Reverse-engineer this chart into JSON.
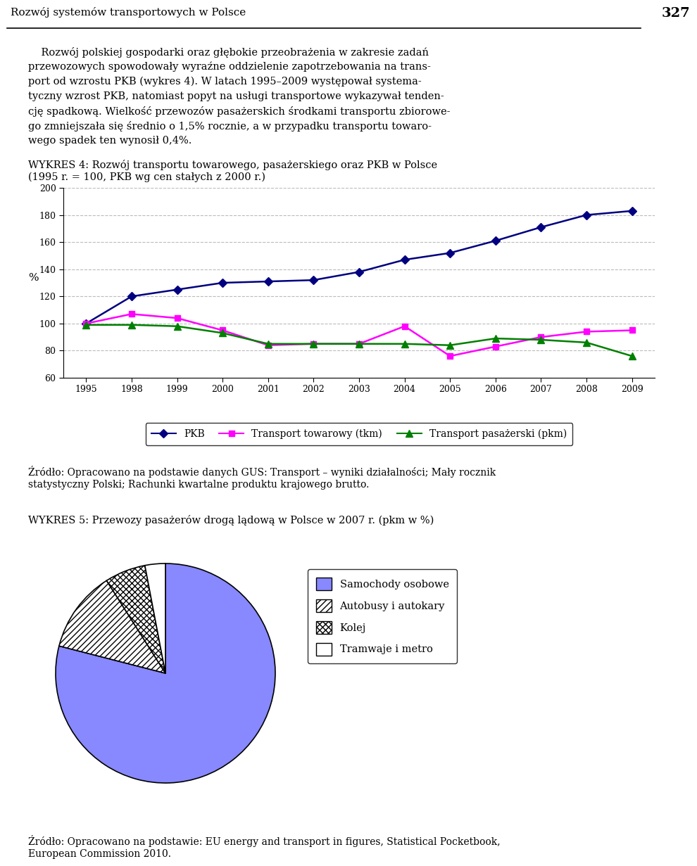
{
  "header_text": "Rozwój systemów transportowych w Polsce",
  "page_number": "327",
  "para_line1": "    Rozwój polskiej gospodarki oraz głębokie przeobrażenia w zakresie zadań",
  "para_line2": "przewozowych spowodowały wyraźne oddzielenie zapotrzebowania na trans-",
  "para_line3": "port od wzrostu PKB (wykres 4). W latach 1995–2009 występował systema-",
  "para_line4": "tyczny wzrost PKB, natomiast popyt na usługi transportowe wykazywał tenden-",
  "para_line5": "cję spadkową. Wielkość przewozów pasażerskich środkami transportu zbiorowe-",
  "para_line6": "go zmniejszała się średnio o 1,5% rocznie, a w przypadku transportu towaro-",
  "para_line7": "wego spadek ten wynosił 0,4%.",
  "chart1_title_line1": "WYKRES 4: Rozwój transportu towarowego, pasażerskiego oraz PKB w Polsce",
  "chart1_title_line2": "(1995 r. = 100, PKB wg cen stałych z 2000 r.)",
  "years": [
    1995,
    1998,
    1999,
    2000,
    2001,
    2002,
    2003,
    2004,
    2005,
    2006,
    2007,
    2008,
    2009
  ],
  "pkb": [
    100,
    120,
    125,
    130,
    131,
    132,
    138,
    147,
    152,
    161,
    171,
    180,
    183
  ],
  "transport_towarowy": [
    100,
    107,
    104,
    95,
    84,
    85,
    85,
    98,
    76,
    83,
    90,
    94,
    95
  ],
  "transport_pasazerski": [
    99,
    99,
    98,
    93,
    85,
    85,
    85,
    85,
    84,
    89,
    88,
    86,
    76
  ],
  "ylabel": "%",
  "ylim": [
    60,
    200
  ],
  "yticks": [
    60,
    80,
    100,
    120,
    140,
    160,
    180,
    200
  ],
  "pkb_color": "#000080",
  "towarowy_color": "#FF00FF",
  "pasazerski_color": "#008000",
  "legend_pkb": "PKB",
  "legend_towarowy": "Transport towarowy (tkm)",
  "legend_pasazerski": "Transport pasażerski (pkm)",
  "source1_line1": "Źródło: Opracowano na podstawie danych GUS: Transport – wyniki działalności; Mały rocznik",
  "source1_line2": "statystyczny Polski; Rachunki kwartalne produktu krajowego brutto.",
  "chart2_title": "WYKRES 5: Przewozy pasażerów drogą lądową w Polsce w 2007 r. (pkm w %)",
  "pie_values": [
    79,
    12,
    6,
    3
  ],
  "pie_labels": [
    "Samochody osobowe",
    "Autobusy i autokary",
    "Kolej",
    "Tramwaje i metro"
  ],
  "pie_colors": [
    "#8888FF",
    "white",
    "white",
    "white"
  ],
  "pie_hatches": [
    "",
    "////",
    "xxxx",
    ""
  ],
  "source2_line1": "Źródło: Opracowano na podstawie: EU energy and transport in figures, Statistical Pocketbook,",
  "source2_line2": "European Commission 2010."
}
